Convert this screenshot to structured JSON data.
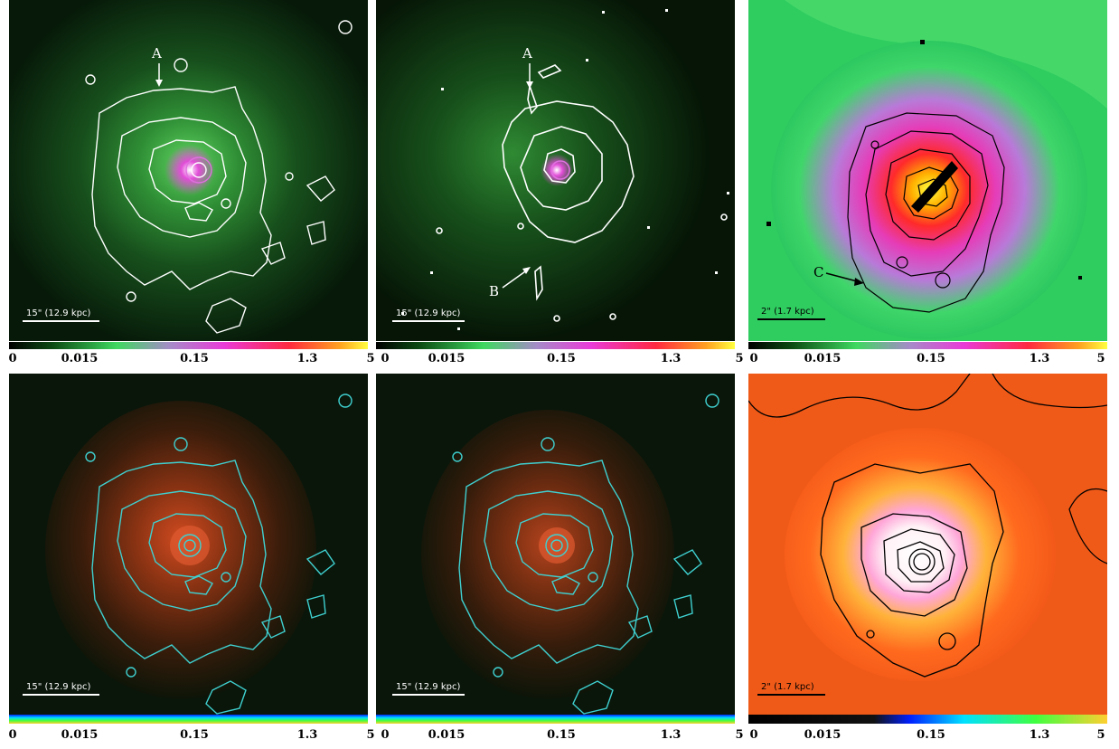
{
  "panels": [
    {
      "id": "top-left",
      "scale_label": "15\" (12.9 kpc)",
      "annotations": {
        "a": "A"
      }
    },
    {
      "id": "top-middle",
      "scale_label": "15\" (12.9 kpc)",
      "annotations": {
        "a": "A",
        "b": "B"
      }
    },
    {
      "id": "top-right",
      "scale_label": "2\" (1.7 kpc)",
      "annotations": {
        "c": "C"
      }
    },
    {
      "id": "bottom-left",
      "scale_label": "15\" (12.9 kpc)"
    },
    {
      "id": "bottom-middle",
      "scale_label": "15\" (12.9 kpc)"
    },
    {
      "id": "bottom-right",
      "scale_label": "2\" (1.7 kpc)"
    }
  ],
  "colorbar_ticks": [
    "0",
    "0.015",
    "0.15",
    "1.3",
    "5"
  ],
  "colors": {
    "contour_white": "#ffffff",
    "contour_cyan": "#3fd0d0",
    "contour_black": "#000000"
  }
}
